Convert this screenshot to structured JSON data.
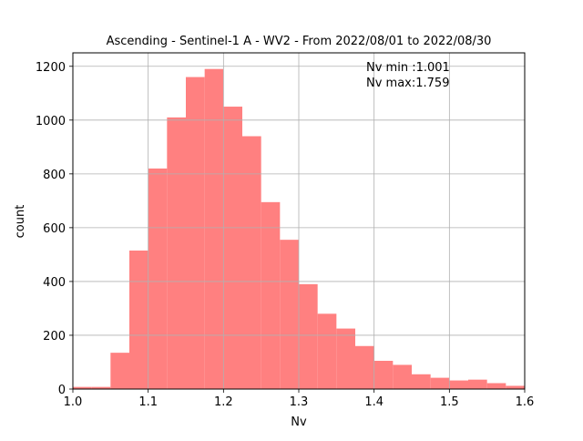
{
  "chart_data": {
    "type": "bar",
    "title": "Ascending - Sentinel-1 A - WV2 - From 2022/08/01 to 2022/08/30",
    "xlabel": "Nv",
    "ylabel": "count",
    "xlim": [
      1.0,
      1.6
    ],
    "ylim": [
      0,
      1250
    ],
    "grid": true,
    "bar_color": "#ff8080",
    "bin_edges": [
      1.0,
      1.025,
      1.05,
      1.075,
      1.1,
      1.125,
      1.15,
      1.175,
      1.2,
      1.225,
      1.25,
      1.275,
      1.3,
      1.325,
      1.35,
      1.375,
      1.4,
      1.425,
      1.45,
      1.475,
      1.5,
      1.525,
      1.55,
      1.575,
      1.6
    ],
    "values": [
      8,
      8,
      135,
      515,
      820,
      1010,
      1160,
      1190,
      1050,
      940,
      695,
      555,
      390,
      280,
      225,
      160,
      105,
      90,
      55,
      42,
      32,
      35,
      22,
      12
    ],
    "xticks": [
      "1.0",
      "1.1",
      "1.2",
      "1.3",
      "1.4",
      "1.5",
      "1.6"
    ],
    "xtick_values": [
      1.0,
      1.1,
      1.2,
      1.3,
      1.4,
      1.5,
      1.6
    ],
    "yticks": [
      "0",
      "200",
      "400",
      "600",
      "800",
      "1000",
      "1200"
    ],
    "ytick_values": [
      0,
      200,
      400,
      600,
      800,
      1000,
      1200
    ],
    "annotations": [
      "Nv min :1.001",
      "Nv max:1.759"
    ]
  }
}
